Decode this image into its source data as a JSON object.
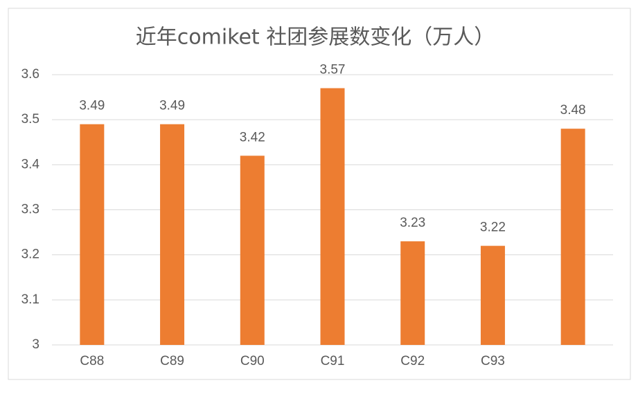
{
  "chart_data": {
    "type": "bar",
    "title": "近年comiket 社团参展数变化（万人）",
    "categories": [
      "C88",
      "C89",
      "C90",
      "C91",
      "C92",
      "C93",
      null
    ],
    "values": [
      3.49,
      3.49,
      3.42,
      3.57,
      3.23,
      3.22,
      3.48
    ],
    "color": "#ed7d31",
    "ylim": [
      3,
      3.6
    ],
    "yticks": [
      3,
      3.1,
      3.2,
      3.3,
      3.4,
      3.5,
      3.6
    ],
    "grid": true
  }
}
